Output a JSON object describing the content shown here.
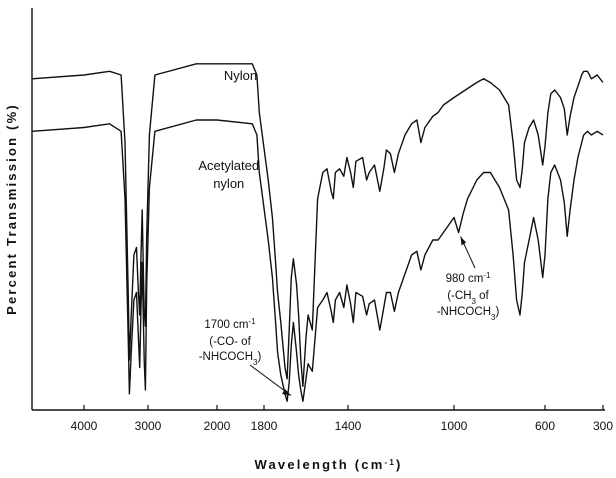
{
  "chart_data": {
    "type": "line",
    "title": "",
    "xlabel": "Wavelength (cm-1)",
    "ylabel": "Percent Transmission (%)",
    "x_ticks": [
      {
        "value": 4000,
        "label": "4000"
      },
      {
        "value": 3000,
        "label": "3000"
      },
      {
        "value": 2000,
        "label": "2000"
      },
      {
        "value": 1800,
        "label": "1800"
      },
      {
        "value": 1400,
        "label": "1400"
      },
      {
        "value": 1000,
        "label": "1000"
      },
      {
        "value": 600,
        "label": "600"
      },
      {
        "value": 300,
        "label": "300"
      }
    ],
    "y_ticks_shown": false,
    "grid": false,
    "series": [
      {
        "name": "Nylon",
        "points": [
          [
            4500,
            87
          ],
          [
            4000,
            88
          ],
          [
            3600,
            89
          ],
          [
            3420,
            88
          ],
          [
            3360,
            70
          ],
          [
            3310,
            30
          ],
          [
            3290,
            12
          ],
          [
            3260,
            25
          ],
          [
            3220,
            40
          ],
          [
            3180,
            42
          ],
          [
            3150,
            30
          ],
          [
            3130,
            24
          ],
          [
            3110,
            40
          ],
          [
            3090,
            52
          ],
          [
            3075,
            38
          ],
          [
            3060,
            25
          ],
          [
            3040,
            21
          ],
          [
            3020,
            45
          ],
          [
            2980,
            72
          ],
          [
            2900,
            88
          ],
          [
            2300,
            91
          ],
          [
            2000,
            91
          ],
          [
            1850,
            91
          ],
          [
            1830,
            88
          ],
          [
            1820,
            78
          ],
          [
            1780,
            60
          ],
          [
            1760,
            50
          ],
          [
            1745,
            38
          ],
          [
            1735,
            30
          ],
          [
            1720,
            22
          ],
          [
            1700,
            10
          ],
          [
            1690,
            7
          ],
          [
            1680,
            20
          ],
          [
            1670,
            34
          ],
          [
            1660,
            39
          ],
          [
            1645,
            32
          ],
          [
            1635,
            24
          ],
          [
            1625,
            12
          ],
          [
            1615,
            5
          ],
          [
            1600,
            18
          ],
          [
            1590,
            24
          ],
          [
            1570,
            20
          ],
          [
            1545,
            55
          ],
          [
            1520,
            62
          ],
          [
            1500,
            63
          ],
          [
            1480,
            57
          ],
          [
            1470,
            55
          ],
          [
            1460,
            62
          ],
          [
            1440,
            63
          ],
          [
            1420,
            61
          ],
          [
            1405,
            66
          ],
          [
            1390,
            62
          ],
          [
            1380,
            58
          ],
          [
            1370,
            65
          ],
          [
            1345,
            66
          ],
          [
            1330,
            60
          ],
          [
            1320,
            62
          ],
          [
            1300,
            64
          ],
          [
            1280,
            57
          ],
          [
            1265,
            63
          ],
          [
            1255,
            68
          ],
          [
            1240,
            67
          ],
          [
            1225,
            62
          ],
          [
            1210,
            67
          ],
          [
            1185,
            72
          ],
          [
            1160,
            75
          ],
          [
            1140,
            76
          ],
          [
            1125,
            70
          ],
          [
            1110,
            74
          ],
          [
            1080,
            77
          ],
          [
            1060,
            78
          ],
          [
            1040,
            80
          ],
          [
            1000,
            82
          ],
          [
            950,
            84
          ],
          [
            900,
            86
          ],
          [
            870,
            87
          ],
          [
            840,
            86
          ],
          [
            800,
            84
          ],
          [
            760,
            80
          ],
          [
            740,
            70
          ],
          [
            725,
            60
          ],
          [
            710,
            58
          ],
          [
            700,
            63
          ],
          [
            690,
            70
          ],
          [
            670,
            74
          ],
          [
            650,
            76
          ],
          [
            630,
            72
          ],
          [
            610,
            64
          ],
          [
            600,
            69
          ],
          [
            585,
            78
          ],
          [
            570,
            83
          ],
          [
            550,
            84
          ],
          [
            520,
            82
          ],
          [
            500,
            79
          ],
          [
            485,
            72
          ],
          [
            470,
            77
          ],
          [
            450,
            82
          ],
          [
            430,
            85
          ],
          [
            410,
            88
          ],
          [
            400,
            89
          ],
          [
            380,
            89
          ],
          [
            360,
            87
          ],
          [
            330,
            88
          ],
          [
            300,
            86
          ]
        ]
      },
      {
        "name": "Acetylated nylon",
        "points": [
          [
            4500,
            73
          ],
          [
            4000,
            74
          ],
          [
            3600,
            75
          ],
          [
            3420,
            73
          ],
          [
            3360,
            55
          ],
          [
            3310,
            18
          ],
          [
            3290,
            3
          ],
          [
            3260,
            15
          ],
          [
            3220,
            28
          ],
          [
            3180,
            30
          ],
          [
            3150,
            18
          ],
          [
            3130,
            10
          ],
          [
            3110,
            26
          ],
          [
            3090,
            38
          ],
          [
            3075,
            25
          ],
          [
            3060,
            12
          ],
          [
            3040,
            4
          ],
          [
            3020,
            32
          ],
          [
            2980,
            58
          ],
          [
            2900,
            73
          ],
          [
            2300,
            76
          ],
          [
            2000,
            76
          ],
          [
            1850,
            75
          ],
          [
            1830,
            72
          ],
          [
            1820,
            62
          ],
          [
            1780,
            44
          ],
          [
            1760,
            34
          ],
          [
            1745,
            22
          ],
          [
            1735,
            14
          ],
          [
            1720,
            8
          ],
          [
            1700,
            3
          ],
          [
            1690,
            1
          ],
          [
            1680,
            6
          ],
          [
            1670,
            16
          ],
          [
            1660,
            22
          ],
          [
            1645,
            14
          ],
          [
            1635,
            8
          ],
          [
            1625,
            4
          ],
          [
            1615,
            1
          ],
          [
            1600,
            7
          ],
          [
            1590,
            11
          ],
          [
            1570,
            9
          ],
          [
            1545,
            26
          ],
          [
            1520,
            28
          ],
          [
            1500,
            30
          ],
          [
            1480,
            25
          ],
          [
            1470,
            22
          ],
          [
            1460,
            28
          ],
          [
            1440,
            30
          ],
          [
            1420,
            26
          ],
          [
            1405,
            32
          ],
          [
            1390,
            27
          ],
          [
            1380,
            22
          ],
          [
            1370,
            30
          ],
          [
            1345,
            29
          ],
          [
            1330,
            24
          ],
          [
            1320,
            27
          ],
          [
            1300,
            28
          ],
          [
            1280,
            20
          ],
          [
            1265,
            26
          ],
          [
            1255,
            30
          ],
          [
            1240,
            30
          ],
          [
            1225,
            25
          ],
          [
            1210,
            30
          ],
          [
            1185,
            35
          ],
          [
            1160,
            40
          ],
          [
            1140,
            41
          ],
          [
            1125,
            36
          ],
          [
            1110,
            40
          ],
          [
            1080,
            44
          ],
          [
            1060,
            44
          ],
          [
            1040,
            46
          ],
          [
            1020,
            48
          ],
          [
            1000,
            50
          ],
          [
            980,
            46
          ],
          [
            960,
            51
          ],
          [
            940,
            55
          ],
          [
            900,
            60
          ],
          [
            870,
            62
          ],
          [
            840,
            62
          ],
          [
            800,
            58
          ],
          [
            760,
            52
          ],
          [
            740,
            40
          ],
          [
            725,
            28
          ],
          [
            710,
            24
          ],
          [
            700,
            30
          ],
          [
            690,
            38
          ],
          [
            670,
            44
          ],
          [
            650,
            50
          ],
          [
            630,
            44
          ],
          [
            610,
            34
          ],
          [
            600,
            40
          ],
          [
            585,
            55
          ],
          [
            570,
            62
          ],
          [
            550,
            64
          ],
          [
            520,
            60
          ],
          [
            500,
            54
          ],
          [
            485,
            45
          ],
          [
            470,
            52
          ],
          [
            450,
            60
          ],
          [
            430,
            66
          ],
          [
            410,
            70
          ],
          [
            400,
            72
          ],
          [
            380,
            73
          ],
          [
            360,
            72
          ],
          [
            330,
            73
          ],
          [
            300,
            72
          ]
        ]
      }
    ],
    "annotations": [
      {
        "id": "nylon-label",
        "text": "Nylon"
      },
      {
        "id": "acetylated-label-1",
        "text": "Acetylated"
      },
      {
        "id": "acetylated-label-2",
        "text": "nylon"
      },
      {
        "id": "co-anno",
        "x": 1700,
        "lines": [
          "1700 cm-1",
          "(-CO- of",
          "-NHCOCH3)"
        ]
      },
      {
        "id": "ch3-anno",
        "x": 980,
        "lines": [
          "980 cm-1",
          "(-CH3 of",
          "-NHCOCH3)"
        ]
      }
    ]
  }
}
